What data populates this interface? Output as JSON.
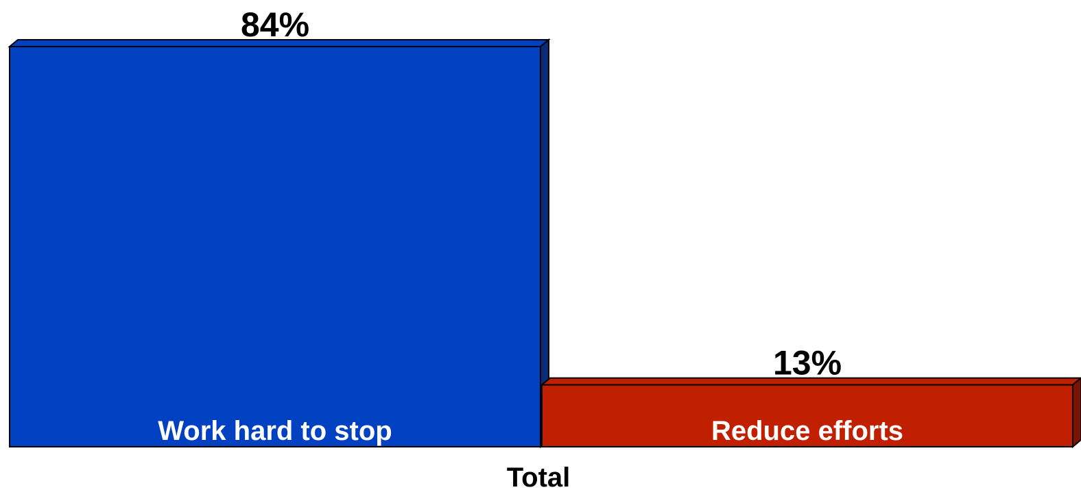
{
  "chart_data": {
    "type": "bar",
    "stacking": "horizontal-share",
    "three_d": true,
    "categories": [
      "Total"
    ],
    "series": [
      {
        "name": "Work hard to stop",
        "value": 84,
        "label": "84%",
        "color": "#0041C2",
        "side_color": "#0A2A7A"
      },
      {
        "name": "Reduce efforts",
        "value": 13,
        "label": "13%",
        "color": "#C02000",
        "side_color": "#7A1400"
      }
    ],
    "xlabel": "Total",
    "grid": false
  }
}
